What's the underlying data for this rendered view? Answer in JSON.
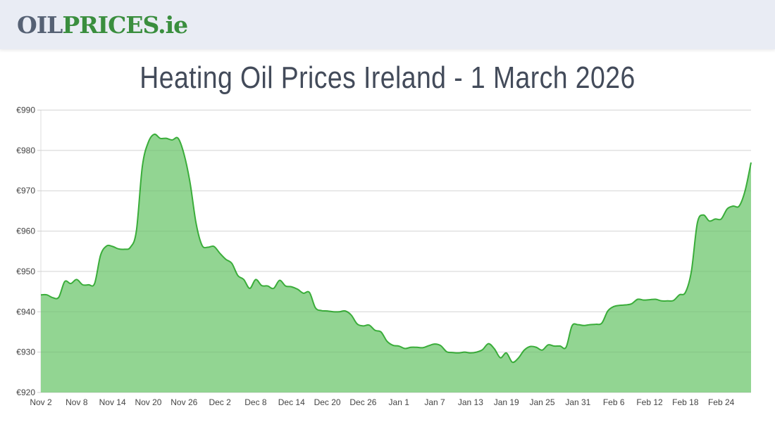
{
  "header": {
    "logo_part1": "OIL",
    "logo_part2": "PRICES.ie"
  },
  "title": "Heating Oil Prices Ireland - 1 March 2026",
  "colors": {
    "line": "#3aad3a",
    "fill": "#92d592",
    "logo_gray": "#566174",
    "logo_green": "#3a8e3e"
  },
  "chart_data": {
    "type": "area",
    "title": "",
    "xlabel": "",
    "ylabel": "",
    "ylim": [
      920,
      990
    ],
    "yticks": [
      "€920",
      "€930",
      "€940",
      "€950",
      "€960",
      "€970",
      "€980",
      "€990"
    ],
    "ytick_values": [
      920,
      930,
      940,
      950,
      960,
      970,
      980,
      990
    ],
    "xticks": [
      "Nov 2",
      "Nov 8",
      "Nov 14",
      "Nov 20",
      "Nov 26",
      "Dec 2",
      "Dec 8",
      "Dec 14",
      "Dec 20",
      "Dec 26",
      "Jan 1",
      "Jan 7",
      "Jan 13",
      "Jan 19",
      "Jan 25",
      "Jan 31",
      "Feb 6",
      "Feb 12",
      "Feb 18",
      "Feb 24"
    ],
    "x_start": "Nov 2",
    "x_end": "Mar 1",
    "grid": true,
    "values": [
      944.2,
      944.2,
      943.5,
      943.6,
      947.5,
      947,
      948,
      946.7,
      946.7,
      947,
      954,
      956.3,
      956.2,
      955.6,
      955.5,
      956,
      960,
      976,
      982,
      984,
      983,
      983,
      982.6,
      983,
      979,
      972,
      962,
      956.5,
      956,
      956.2,
      954.5,
      953,
      952,
      949,
      948,
      945.8,
      948,
      946.5,
      946.4,
      945.8,
      947.8,
      946.4,
      946.2,
      945.6,
      944.6,
      944.8,
      941,
      940.3,
      940.2,
      940,
      940,
      940.2,
      939.2,
      937,
      936.5,
      936.7,
      935.4,
      935,
      932.7,
      931.7,
      931.5,
      930.9,
      931.2,
      931.2,
      931.1,
      931.6,
      932,
      931.6,
      930.1,
      929.9,
      929.8,
      930,
      929.8,
      930,
      930.6,
      932.1,
      930.8,
      928.6,
      929.8,
      927.5,
      928.5,
      930.5,
      931.4,
      931.2,
      930.5,
      931.8,
      931.5,
      931.5,
      931.2,
      936.5,
      936.8,
      936.6,
      936.8,
      936.9,
      937.2,
      940.2,
      941.3,
      941.6,
      941.7,
      942,
      943.1,
      942.9,
      943,
      943.1,
      942.7,
      942.7,
      942.8,
      944.2,
      944.8,
      950,
      962,
      964,
      962.5,
      963,
      963,
      965.5,
      966.2,
      966.2,
      970,
      977
    ]
  }
}
